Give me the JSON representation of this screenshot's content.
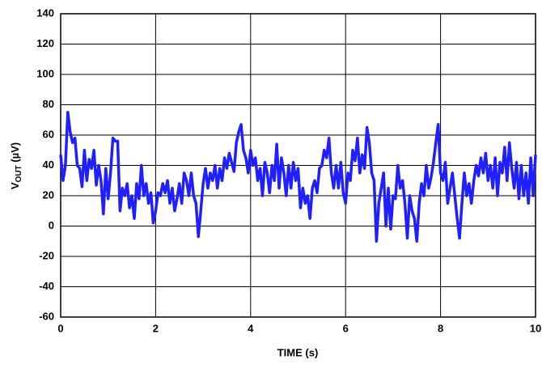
{
  "chart_data": {
    "type": "line",
    "x_label": "TIME (s)",
    "y_label": {
      "main": "V",
      "sub": "OUT",
      "rest": " (µV)"
    },
    "xlim": [
      0,
      10
    ],
    "xticks": [
      0,
      2,
      4,
      6,
      8,
      10
    ],
    "ylim": [
      -60,
      140
    ],
    "yticks": [
      -60,
      -40,
      -20,
      0,
      20,
      40,
      60,
      80,
      100,
      120,
      140
    ],
    "grid": true,
    "x": [
      0,
      0.05,
      0.1,
      0.15,
      0.2,
      0.25,
      0.3,
      0.35,
      0.4,
      0.45,
      0.5,
      0.55,
      0.6,
      0.65,
      0.7,
      0.75,
      0.8,
      0.85,
      0.9,
      0.95,
      1,
      1.05,
      1.1,
      1.15,
      1.2,
      1.25,
      1.3,
      1.35,
      1.4,
      1.45,
      1.5,
      1.55,
      1.6,
      1.65,
      1.7,
      1.75,
      1.8,
      1.85,
      1.9,
      1.95,
      2,
      2.05,
      2.1,
      2.15,
      2.2,
      2.25,
      2.3,
      2.35,
      2.4,
      2.45,
      2.5,
      2.55,
      2.6,
      2.65,
      2.7,
      2.75,
      2.8,
      2.85,
      2.9,
      2.95,
      3,
      3.05,
      3.1,
      3.15,
      3.2,
      3.25,
      3.3,
      3.35,
      3.4,
      3.45,
      3.5,
      3.55,
      3.6,
      3.65,
      3.7,
      3.75,
      3.8,
      3.85,
      3.9,
      3.95,
      4,
      4.05,
      4.1,
      4.15,
      4.2,
      4.25,
      4.3,
      4.35,
      4.4,
      4.45,
      4.5,
      4.55,
      4.6,
      4.65,
      4.7,
      4.75,
      4.8,
      4.85,
      4.9,
      4.95,
      5,
      5.05,
      5.1,
      5.15,
      5.2,
      5.25,
      5.3,
      5.35,
      5.4,
      5.45,
      5.5,
      5.55,
      5.6,
      5.65,
      5.7,
      5.75,
      5.8,
      5.85,
      5.9,
      5.95,
      6,
      6.05,
      6.1,
      6.15,
      6.2,
      6.25,
      6.3,
      6.35,
      6.4,
      6.45,
      6.5,
      6.55,
      6.6,
      6.65,
      6.7,
      6.75,
      6.8,
      6.85,
      6.9,
      6.95,
      7,
      7.05,
      7.1,
      7.15,
      7.2,
      7.25,
      7.3,
      7.35,
      7.4,
      7.45,
      7.5,
      7.55,
      7.6,
      7.65,
      7.7,
      7.75,
      7.8,
      7.85,
      7.9,
      7.95,
      8,
      8.05,
      8.1,
      8.15,
      8.2,
      8.25,
      8.3,
      8.35,
      8.4,
      8.45,
      8.5,
      8.55,
      8.6,
      8.65,
      8.7,
      8.75,
      8.8,
      8.85,
      8.9,
      8.95,
      9,
      9.05,
      9.1,
      9.15,
      9.2,
      9.25,
      9.3,
      9.35,
      9.4,
      9.45,
      9.5,
      9.55,
      9.6,
      9.65,
      9.7,
      9.75,
      9.8,
      9.85,
      9.9,
      9.95,
      10
    ],
    "series": [
      {
        "color": "#1f1fff",
        "values": [
          47,
          30,
          40,
          75,
          62,
          55,
          58,
          40,
          38,
          26,
          50,
          30,
          44,
          38,
          50,
          27,
          40,
          30,
          8,
          38,
          18,
          35,
          58,
          56,
          56,
          10,
          25,
          20,
          28,
          12,
          20,
          5,
          28,
          18,
          40,
          20,
          28,
          15,
          22,
          2,
          10,
          22,
          20,
          28,
          22,
          30,
          15,
          25,
          10,
          18,
          28,
          15,
          35,
          30,
          20,
          35,
          20,
          15,
          -7,
          10,
          28,
          38,
          25,
          35,
          30,
          40,
          25,
          38,
          30,
          45,
          38,
          48,
          42,
          36,
          55,
          62,
          67,
          50,
          45,
          35,
          50,
          40,
          45,
          30,
          38,
          20,
          42,
          35,
          22,
          40,
          30,
          54,
          25,
          45,
          35,
          20,
          40,
          25,
          42,
          30,
          38,
          12,
          25,
          15,
          20,
          5,
          25,
          30,
          22,
          38,
          40,
          50,
          45,
          58,
          35,
          25,
          40,
          25,
          42,
          22,
          15,
          35,
          30,
          50,
          43,
          58,
          35,
          47,
          38,
          65,
          55,
          35,
          30,
          -10,
          15,
          25,
          35,
          0,
          25,
          -2,
          20,
          18,
          40,
          25,
          30,
          15,
          -8,
          20,
          10,
          5,
          -10,
          15,
          28,
          20,
          40,
          25,
          32,
          42,
          55,
          67,
          35,
          30,
          42,
          15,
          25,
          35,
          20,
          5,
          -8,
          15,
          35,
          20,
          28,
          15,
          30,
          40,
          33,
          45,
          35,
          48,
          30,
          40,
          25,
          45,
          20,
          42,
          35,
          52,
          30,
          55,
          38,
          25,
          42,
          18,
          40,
          20,
          35,
          15,
          45,
          20,
          47
        ]
      }
    ]
  }
}
